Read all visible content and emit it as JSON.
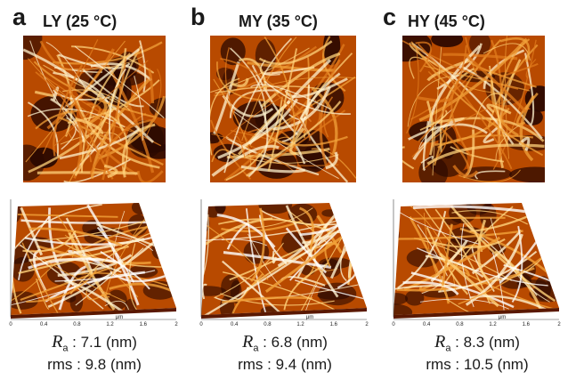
{
  "panels": [
    {
      "letter": "a",
      "title": "LY (25 °C)",
      "ra_symbol": "R",
      "ra_sub": "a",
      "ra_value": " : 7.1 (nm)",
      "rms_text": "rms : 9.8 (nm)",
      "axis_unit": "μm",
      "x_ticks": [
        "0",
        "0.4",
        "0.8",
        "1.2",
        "1.6",
        "2"
      ]
    },
    {
      "letter": "b",
      "title": "MY (35 °C)",
      "ra_symbol": "R",
      "ra_sub": "a",
      "ra_value": " : 6.8 (nm)",
      "rms_text": "rms : 9.4 (nm)",
      "axis_unit": "μm",
      "x_ticks": [
        "0",
        "0.4",
        "0.8",
        "1.2",
        "1.6",
        "2"
      ]
    },
    {
      "letter": "c",
      "title": "HY (45 °C)",
      "ra_symbol": "R",
      "ra_sub": "a",
      "ra_value": " : 8.3 (nm)",
      "rms_text": "rms : 10.5 (nm)",
      "axis_unit": "μm",
      "x_ticks": [
        "0",
        "0.4",
        "0.8",
        "1.2",
        "1.6",
        "2"
      ]
    }
  ],
  "colors": {
    "afm_dark": "#2a0800",
    "afm_mid": "#b84a00",
    "afm_bright": "#ffd27a",
    "afm_highlight": "#fff3cf"
  }
}
